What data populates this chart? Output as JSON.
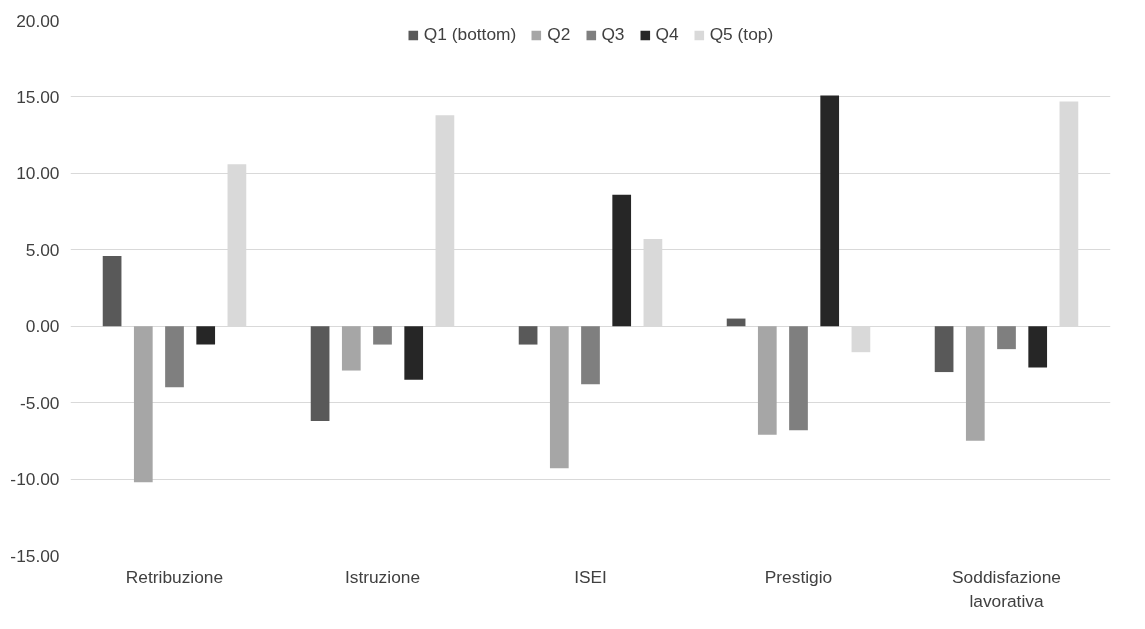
{
  "chart_data": {
    "type": "bar",
    "categories": [
      "Retribuzione",
      "Istruzione",
      "ISEI",
      "Prestigio",
      "Soddisfazione lavorativa"
    ],
    "series": [
      {
        "name": "Q1 (bottom)",
        "color": "#595959",
        "values": [
          4.6,
          -6.2,
          -1.2,
          0.5,
          -3.0
        ]
      },
      {
        "name": "Q2",
        "color": "#a6a6a6",
        "values": [
          -10.2,
          -2.9,
          -9.3,
          -7.1,
          -7.5
        ]
      },
      {
        "name": "Q3",
        "color": "#7f7f7f",
        "values": [
          -4.0,
          -1.2,
          -3.8,
          -6.8,
          -1.5
        ]
      },
      {
        "name": "Q4",
        "color": "#262626",
        "values": [
          -1.2,
          -3.5,
          8.6,
          15.1,
          -2.7
        ]
      },
      {
        "name": "Q5 (top)",
        "color": "#d9d9d9",
        "values": [
          10.6,
          13.8,
          5.7,
          -1.7,
          14.7
        ]
      }
    ],
    "ylim": [
      -15,
      20
    ],
    "yticks": [
      {
        "value": -15,
        "label": "-15.00"
      },
      {
        "value": -10,
        "label": "-10.00"
      },
      {
        "value": -5,
        "label": "-5.00"
      },
      {
        "value": 0,
        "label": "0.00"
      },
      {
        "value": 5,
        "label": "5.00"
      },
      {
        "value": 10,
        "label": "10.00"
      },
      {
        "value": 15,
        "label": "15.00"
      },
      {
        "value": 20,
        "label": "20.00"
      }
    ],
    "grid": "y",
    "legend": "top"
  }
}
